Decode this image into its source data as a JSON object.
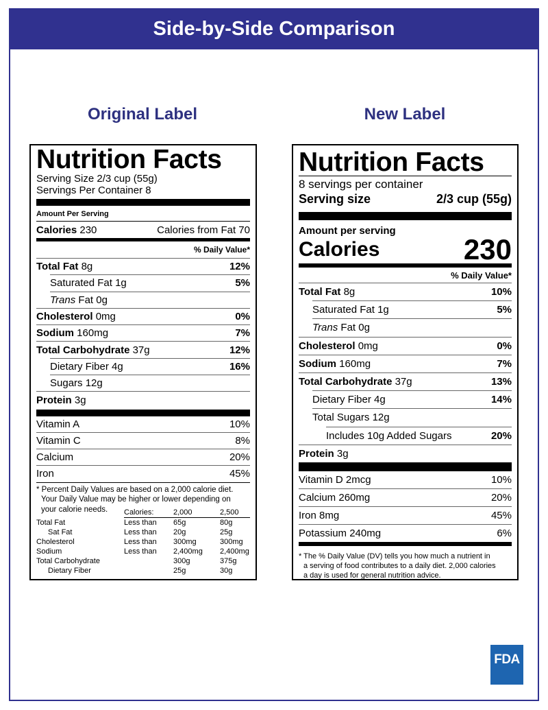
{
  "header": {
    "title": "Side-by-Side Comparison"
  },
  "original_label": {
    "heading": "Original Label",
    "title": "Nutrition Facts",
    "serving_size": "Serving Size 2/3 cup (55g)",
    "servings_per_container": "Servings Per Container 8",
    "amount_per_serving": "Amount Per Serving",
    "calories": {
      "label": "Calories",
      "amount": "230",
      "from_fat": "Calories from Fat 70"
    },
    "daily_value_header": "% Daily Value*",
    "nutrients": [
      {
        "name": "Total Fat",
        "amount": "8g",
        "dv": "12%"
      },
      {
        "name": "Saturated Fat",
        "amount": "1g",
        "dv": "5%"
      },
      {
        "name_italic": "Trans",
        "name": "Fat",
        "amount": "0g"
      },
      {
        "name": "Cholesterol",
        "amount": "0mg",
        "dv": "0%"
      },
      {
        "name": "Sodium",
        "amount": "160mg",
        "dv": "7%"
      },
      {
        "name": "Total Carbohydrate",
        "amount": "37g",
        "dv": "12%"
      },
      {
        "name": "Dietary Fiber",
        "amount": "4g",
        "dv": "16%"
      },
      {
        "name": "Sugars",
        "amount": "12g"
      },
      {
        "name": "Protein",
        "amount": "3g"
      }
    ],
    "vitamins": [
      {
        "name": "Vitamin A",
        "dv": "10%"
      },
      {
        "name": "Vitamin C",
        "dv": "8%"
      },
      {
        "name": "Calcium",
        "dv": "20%"
      },
      {
        "name": "Iron",
        "dv": "45%"
      }
    ],
    "footnote": [
      "* Percent Daily Values are based on a 2,000 calorie diet.",
      "Your Daily Value may be higher or lower depending on",
      "your calorie needs."
    ],
    "reference_table": {
      "header": [
        "Calories:",
        "2,000",
        "2,500"
      ],
      "rows": [
        [
          "Total Fat",
          "Less than",
          "65g",
          "80g"
        ],
        [
          "Sat Fat",
          "Less than",
          "20g",
          "25g"
        ],
        [
          "Cholesterol",
          "Less than",
          "300mg",
          "300mg"
        ],
        [
          "Sodium",
          "Less than",
          "2,400mg",
          "2,400mg"
        ],
        [
          "Total Carbohydrate",
          "300g",
          "375g"
        ],
        [
          "Dietary Fiber",
          "25g",
          "30g"
        ]
      ]
    }
  },
  "new_label": {
    "heading": "New Label",
    "title": "Nutrition Facts",
    "servings_per_container": "8 servings per container",
    "serving_size": {
      "label": "Serving size",
      "amount": "2/3 cup (55g)"
    },
    "amount_per_serving": "Amount per serving",
    "calories": {
      "label": "Calories",
      "amount": "230"
    },
    "daily_value_header": "% Daily Value*",
    "nutrients": [
      {
        "name": "Total Fat",
        "amount": "8g",
        "dv": "10%"
      },
      {
        "name": "Saturated Fat",
        "amount": "1g",
        "dv": "5%"
      },
      {
        "name_italic": "Trans",
        "name": "Fat",
        "amount": "0g"
      },
      {
        "name": "Cholesterol",
        "amount": "0mg",
        "dv": "0%"
      },
      {
        "name": "Sodium",
        "amount": "160mg",
        "dv": "7%"
      },
      {
        "name": "Total Carbohydrate",
        "amount": "37g",
        "dv": "13%"
      },
      {
        "name": "Dietary Fiber",
        "amount": "4g",
        "dv": "14%"
      },
      {
        "name": "Total Sugars",
        "amount": "12g"
      },
      {
        "name": "Includes 10g Added Sugars",
        "dv": "20%"
      },
      {
        "name": "Protein",
        "amount": "3g"
      }
    ],
    "vitamins": [
      {
        "name": "Vitamin D",
        "amount": "2mcg",
        "dv": "10%"
      },
      {
        "name": "Calcium",
        "amount": "260mg",
        "dv": "20%"
      },
      {
        "name": "Iron",
        "amount": "8mg",
        "dv": "45%"
      },
      {
        "name": "Potassium",
        "amount": "240mg",
        "dv": "6%"
      }
    ],
    "footnote": [
      "* The % Daily Value (DV) tells you how much a nutrient in",
      "a serving of food contributes to a daily diet. 2,000 calories",
      "a day is used for general nutrition advice."
    ]
  },
  "logo": "FDA"
}
